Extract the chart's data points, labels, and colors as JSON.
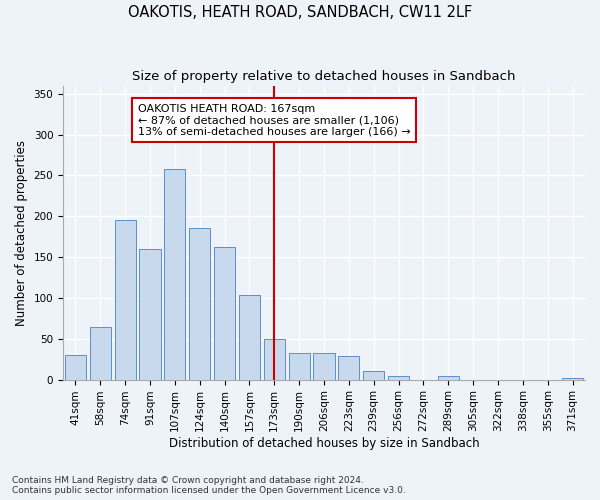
{
  "title": "OAKOTIS, HEATH ROAD, SANDBACH, CW11 2LF",
  "subtitle": "Size of property relative to detached houses in Sandbach",
  "xlabel": "Distribution of detached houses by size in Sandbach",
  "ylabel": "Number of detached properties",
  "categories": [
    "41sqm",
    "58sqm",
    "74sqm",
    "91sqm",
    "107sqm",
    "124sqm",
    "140sqm",
    "157sqm",
    "173sqm",
    "190sqm",
    "206sqm",
    "223sqm",
    "239sqm",
    "256sqm",
    "272sqm",
    "289sqm",
    "305sqm",
    "322sqm",
    "338sqm",
    "355sqm",
    "371sqm"
  ],
  "values": [
    30,
    65,
    195,
    160,
    258,
    185,
    162,
    103,
    50,
    32,
    32,
    29,
    11,
    4,
    0,
    5,
    0,
    0,
    0,
    0,
    2
  ],
  "bar_color": "#c9d9ed",
  "bar_edge_color": "#5b8fc9",
  "background_color": "#eef2f9",
  "grid_color": "#ffffff",
  "vline_index": 8,
  "vline_color": "#cc0000",
  "annotation_title": "OAKOTIS HEATH ROAD: 167sqm",
  "annotation_line1": "← 87% of detached houses are smaller (1,106)",
  "annotation_line2": "13% of semi-detached houses are larger (166) →",
  "annotation_box_color": "#ffffff",
  "annotation_box_edge": "#cc0000",
  "ylim": [
    0,
    360
  ],
  "yticks": [
    0,
    50,
    100,
    150,
    200,
    250,
    300,
    350
  ],
  "footer1": "Contains HM Land Registry data © Crown copyright and database right 2024.",
  "footer2": "Contains public sector information licensed under the Open Government Licence v3.0.",
  "title_fontsize": 10.5,
  "subtitle_fontsize": 9.5,
  "axis_label_fontsize": 8.5,
  "tick_fontsize": 7.5,
  "annotation_fontsize": 8,
  "footer_fontsize": 6.5
}
